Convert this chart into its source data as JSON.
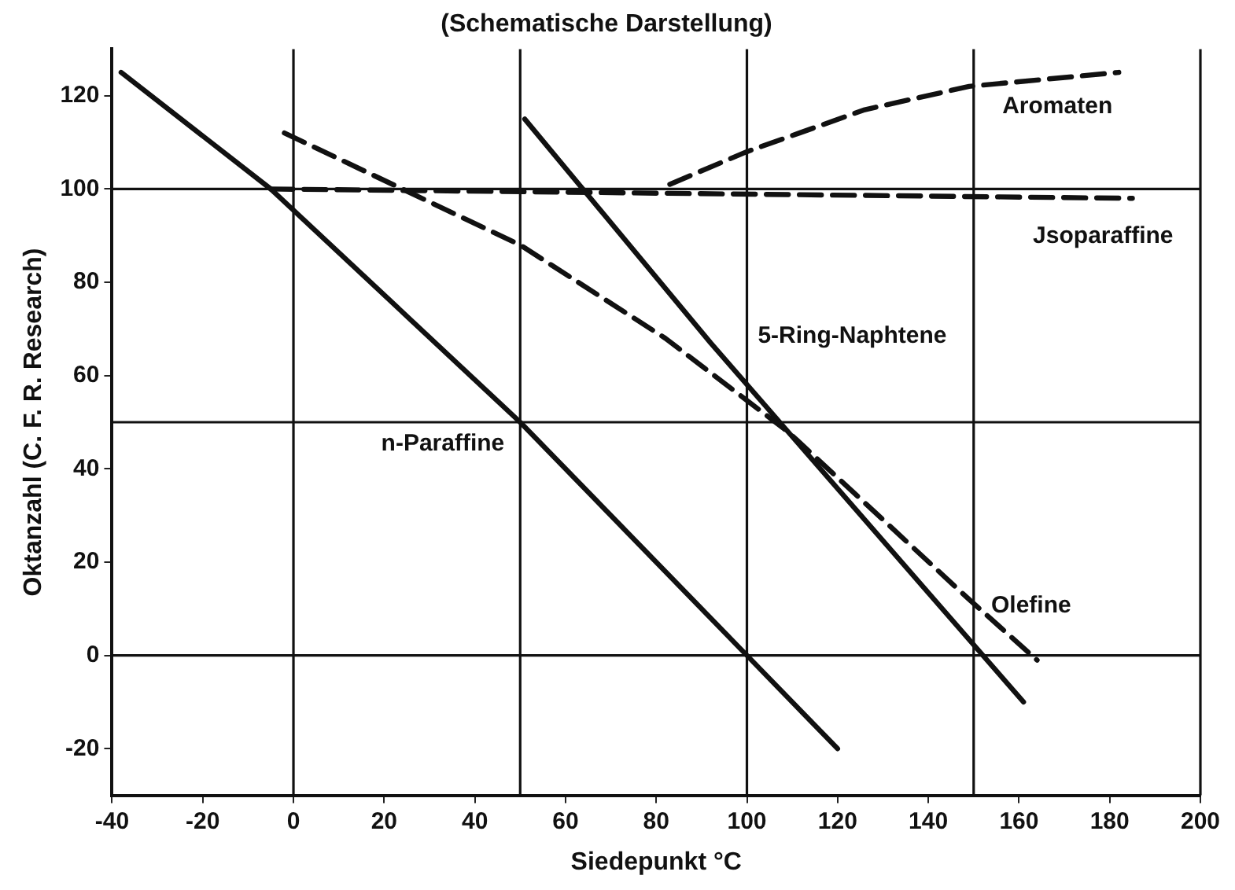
{
  "chart_data": {
    "type": "line",
    "title": "(Schematische Darstellung)",
    "xlabel": "Siedepunkt °C",
    "ylabel": "Oktanzahl (C. F. R. Research)",
    "xlim": [
      -40,
      200
    ],
    "xticks": [
      -40,
      -20,
      0,
      20,
      40,
      60,
      80,
      100,
      120,
      140,
      160,
      180,
      200
    ],
    "ylim": [
      -30,
      130
    ],
    "yticks": [
      -20,
      0,
      20,
      40,
      60,
      80,
      100,
      120
    ],
    "grid": false,
    "legend": false,
    "marker": "none",
    "ref_lines": [
      {
        "axis": "x",
        "value": 0
      },
      {
        "axis": "x",
        "value": 50
      },
      {
        "axis": "x",
        "value": 100
      },
      {
        "axis": "x",
        "value": 150
      },
      {
        "axis": "y",
        "value": 0
      },
      {
        "axis": "y",
        "value": 50
      },
      {
        "axis": "y",
        "value": 100
      }
    ],
    "series": [
      {
        "name": "n-Paraffine",
        "color": "#111111",
        "line_style": "solid",
        "x": [
          -38,
          -5,
          50,
          100,
          120
        ],
        "values": [
          125,
          100,
          50,
          0,
          -20
        ]
      },
      {
        "name": "Jsoparaffine",
        "color": "#111111",
        "line_style": "dashed",
        "x": [
          -5,
          185
        ],
        "values": [
          100,
          98
        ]
      },
      {
        "name": "Olefine",
        "color": "#111111",
        "line_style": "dashed",
        "x": [
          -2,
          50,
          82,
          109,
          149,
          164
        ],
        "values": [
          112,
          88,
          68,
          48,
          12,
          -1
        ]
      },
      {
        "name": "5-Ring-Naphtene",
        "color": "#111111",
        "line_style": "solid",
        "x": [
          51,
          92,
          161
        ],
        "values": [
          115,
          67,
          -10
        ]
      },
      {
        "name": "Aromaten",
        "color": "#111111",
        "line_style": "dashed",
        "x": [
          83,
          100,
          126,
          149,
          182
        ],
        "values": [
          101,
          108,
          117,
          122,
          125
        ]
      }
    ]
  }
}
